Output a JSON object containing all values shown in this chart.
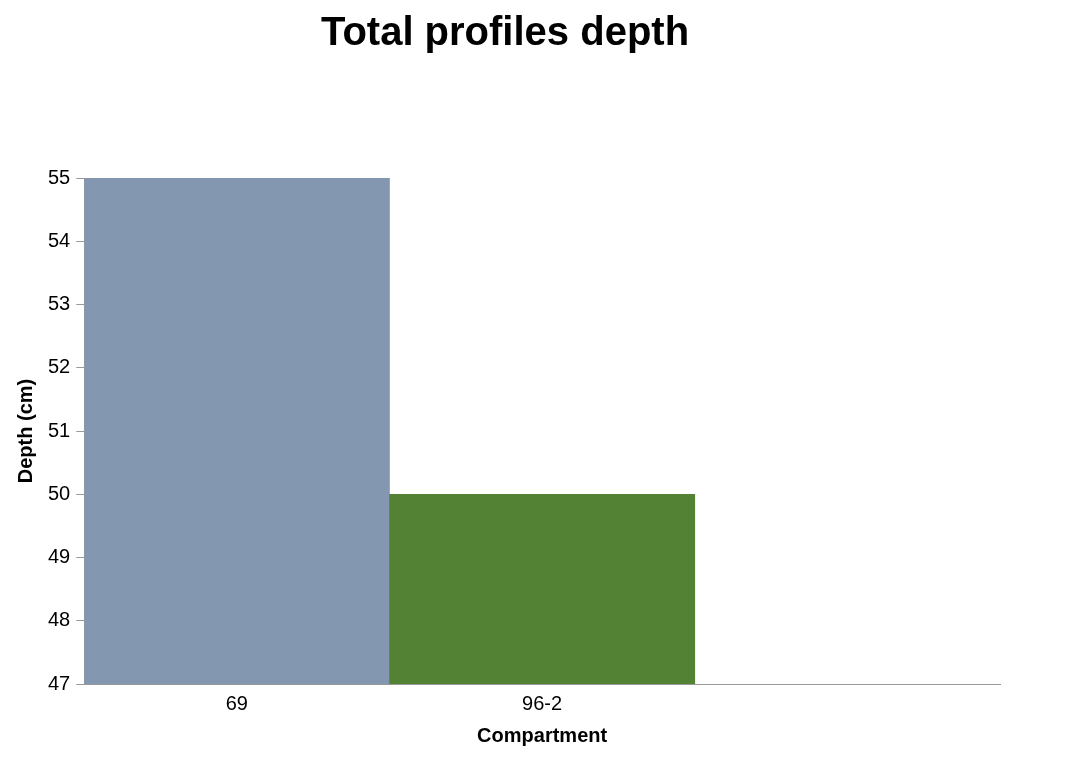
{
  "chart_data": {
    "type": "bar",
    "title": "Total profiles depth",
    "xlabel": "Compartment",
    "ylabel": "Depth (cm)",
    "categories": [
      "69",
      "96-2",
      null
    ],
    "values": [
      55,
      50,
      null
    ],
    "colors": [
      "#8497b0",
      "#548235",
      null
    ],
    "ylim": [
      47,
      55
    ],
    "yticks": [
      47,
      48,
      49,
      50,
      51,
      52,
      53,
      54,
      55
    ],
    "grid": false,
    "legend": false
  }
}
